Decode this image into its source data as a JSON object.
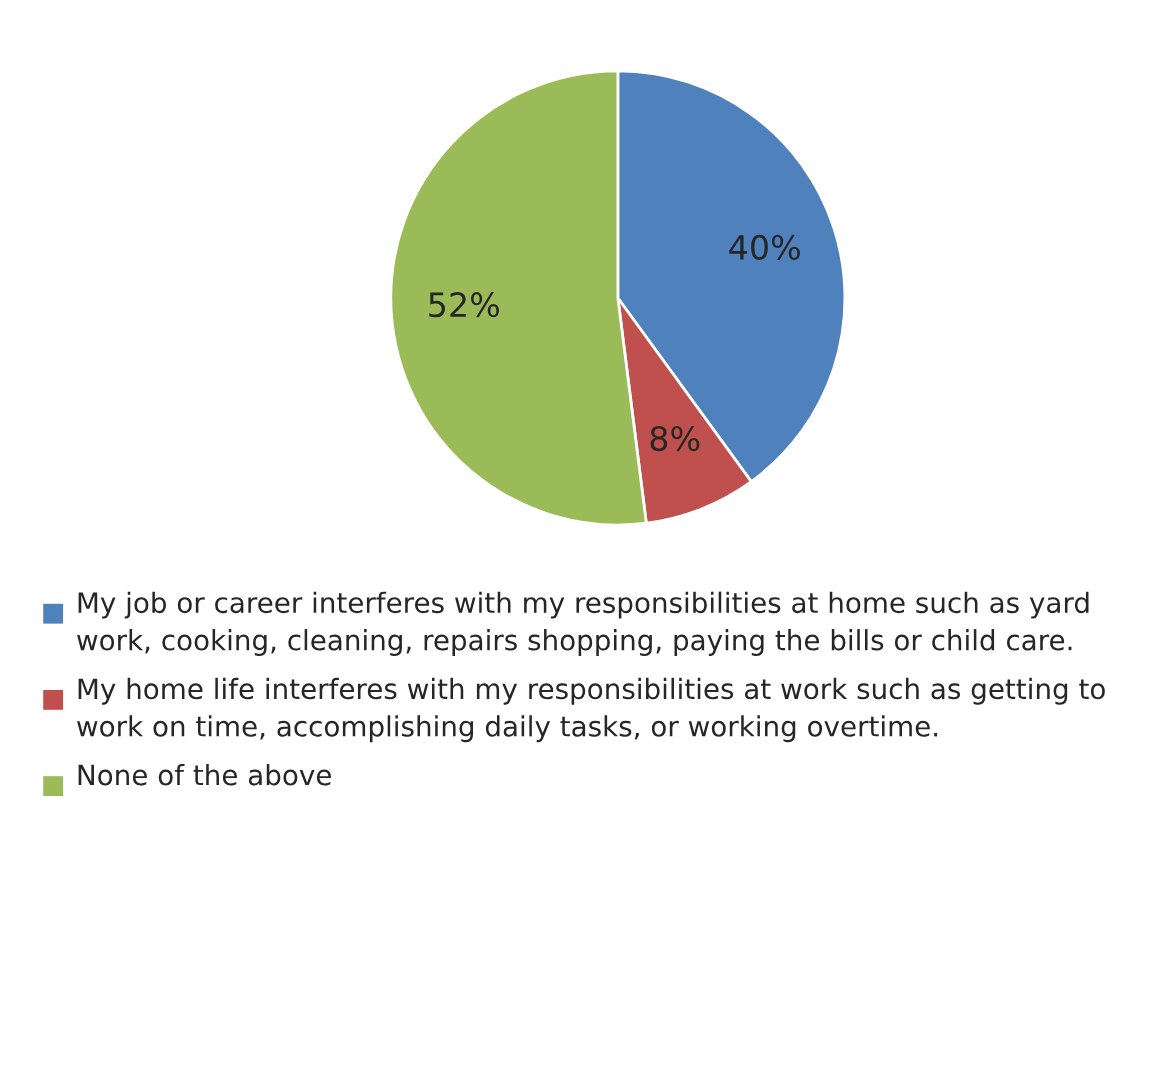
{
  "chart_data": {
    "type": "pie",
    "categories": [
      "My job or career interferes with my responsibilities at home such as yard work, cooking, cleaning, repairs shopping, paying the bills or child care.",
      "My home life interferes with my responsibilities at work such as getting to work on time, accomplishing daily tasks, or working overtime.",
      "None of the above"
    ],
    "values": [
      40,
      8,
      52
    ],
    "colors": [
      "#4f81bd",
      "#c0504d",
      "#9bbb59"
    ],
    "value_labels": [
      "40%",
      "8%",
      "52%"
    ],
    "legend": "bottom"
  }
}
